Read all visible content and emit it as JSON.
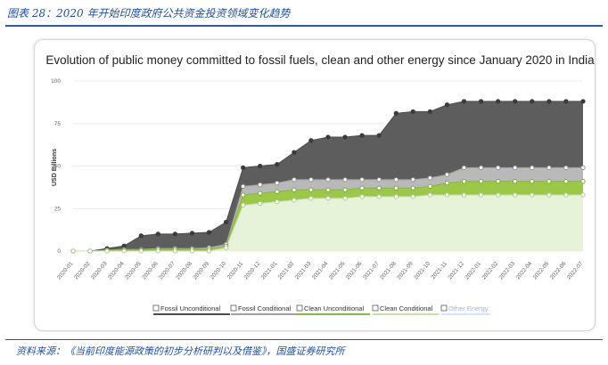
{
  "page": {
    "caption": "图表 28：2020 年开始印度政府公共资金投资领域变化趋势",
    "source": "资料来源：《当前印度能源政策的初步分析研判以及借鉴》，国盛证券研究所"
  },
  "colors": {
    "fossil_unconditional": "#5d5d5d",
    "fossil_conditional": "#b9b9b9",
    "clean_unconditional": "#9cc84a",
    "clean_conditional": "#e7f3d9",
    "other_energy": "#d8e4f2"
  },
  "chart_data": {
    "type": "area",
    "title": "Evolution of public money committed to fossil fuels, clean and other energy since January 2020 in India",
    "ylabel": "USD Billions",
    "xlabel": "",
    "ylim": [
      0,
      100
    ],
    "yticks": [
      0,
      25,
      50,
      75,
      100
    ],
    "grid": true,
    "legend_position": "bottom",
    "stacked": true,
    "categories": [
      "2020-01",
      "2020-02",
      "2020-03",
      "2020-04",
      "2020-05",
      "2020-06",
      "2020-07",
      "2020-08",
      "2020-09",
      "2020-10",
      "2020-11",
      "2020-12",
      "2021-01",
      "2021-02",
      "2021-03",
      "2021-04",
      "2021-05",
      "2021-06",
      "2021-07",
      "2021-08",
      "2021-09",
      "2021-10",
      "2021-11",
      "2021-12",
      "2022-01",
      "2022-02",
      "2022-03",
      "2022-04",
      "2022-05",
      "2022-06",
      "2022-07"
    ],
    "series": [
      {
        "name": "Fossil Unconditional",
        "cumulative_values": [
          0,
          0,
          1.5,
          3,
          9,
          10,
          10,
          10.5,
          11,
          17,
          49,
          50,
          51,
          58,
          65,
          67,
          67,
          68,
          68,
          81,
          82,
          82,
          86,
          88,
          88,
          88,
          88,
          88,
          88,
          88,
          88
        ]
      },
      {
        "name": "Fossil Conditional",
        "cumulative_values": [
          0,
          0,
          0.5,
          1,
          1,
          1.5,
          1.5,
          1.5,
          2,
          4,
          38,
          39,
          40,
          42,
          42,
          42,
          42,
          42,
          42,
          42,
          42,
          43,
          45,
          49,
          49,
          49,
          49,
          49,
          49,
          49,
          49
        ]
      },
      {
        "name": "Clean Unconditional",
        "cumulative_values": [
          0,
          0,
          0.5,
          0.5,
          0.5,
          1,
          1,
          1,
          1,
          3,
          33,
          34,
          35,
          36,
          36,
          36,
          36,
          37,
          37,
          37,
          37,
          38,
          40,
          41,
          41,
          41,
          41,
          41,
          41,
          41,
          41
        ]
      },
      {
        "name": "Clean Conditional",
        "cumulative_values": [
          0,
          0,
          0,
          0,
          0,
          0,
          0,
          0,
          0,
          2,
          27,
          28,
          29,
          30,
          31,
          31,
          31,
          32,
          32,
          32,
          32,
          33,
          33,
          33,
          33,
          33,
          33,
          33,
          33,
          33,
          33
        ]
      },
      {
        "name": "Other Energy",
        "cumulative_values": [
          0,
          0,
          0,
          0,
          0,
          0,
          0,
          0,
          0,
          2,
          27,
          28,
          29,
          30,
          31,
          31,
          31,
          32,
          32,
          32,
          32,
          33,
          33,
          33,
          33,
          33,
          33,
          33,
          33,
          33,
          33
        ]
      }
    ]
  }
}
